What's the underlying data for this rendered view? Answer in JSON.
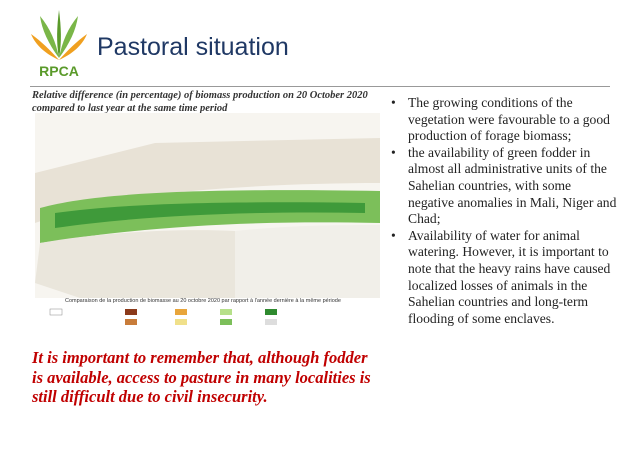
{
  "logo": {
    "text": "RPCA"
  },
  "title": "Pastoral situation",
  "map": {
    "caption": "Relative difference (in percentage) of biomass production on 20 October 2020 compared to last year at the same time period",
    "legend_title": "Comparaison de la production de biomasse au 20 octobre 2020 par rapport à l'année dernière à la même période"
  },
  "note": "It is important to remember that, although fodder is available, access to pasture in many localities is still difficult due to civil insecurity.",
  "bullets": [
    "The growing conditions of the vegetation were favourable to a good production of forage biomass;",
    "the availability of green fodder in almost all administrative units of the Sahelian countries, with some negative anomalies in Mali, Niger and Chad;",
    "Availability of water for animal watering. However, it is important to note that the heavy rains have caused localized losses of animals in the Sahelian countries and long-term flooding of some enclaves."
  ]
}
